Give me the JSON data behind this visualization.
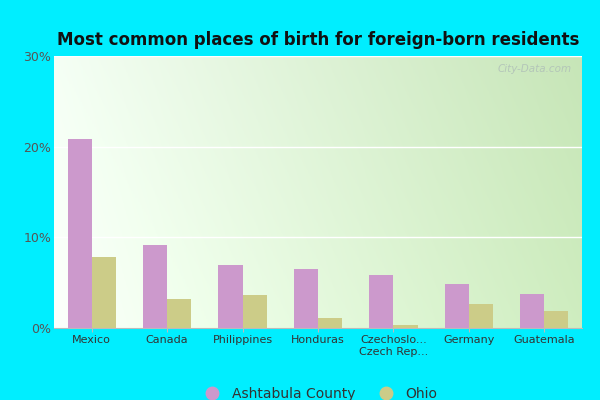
{
  "title": "Most common places of birth for foreign-born residents",
  "categories": [
    "Mexico",
    "Canada",
    "Philippines",
    "Honduras",
    "Czechoslo...\nCzech Rep...",
    "Germany",
    "Guatemala"
  ],
  "ashtabula_values": [
    20.8,
    9.2,
    7.0,
    6.5,
    5.9,
    4.8,
    3.7
  ],
  "ohio_values": [
    7.8,
    3.2,
    3.6,
    1.1,
    0.3,
    2.7,
    1.9
  ],
  "ashtabula_color": "#cc99cc",
  "ohio_color": "#cccc88",
  "ylim": [
    0,
    30
  ],
  "yticks": [
    0,
    10,
    20,
    30
  ],
  "ytick_labels": [
    "0%",
    "10%",
    "20%",
    "30%"
  ],
  "legend_labels": [
    "Ashtabula County",
    "Ohio"
  ],
  "watermark": "City-Data.com",
  "outer_bg_color": "#00eeff",
  "plot_bg_gradient_left": "#f0fff0",
  "plot_bg_gradient_right": "#c8e8c0",
  "grid_color": "#e0e8d8",
  "bar_width": 0.32
}
